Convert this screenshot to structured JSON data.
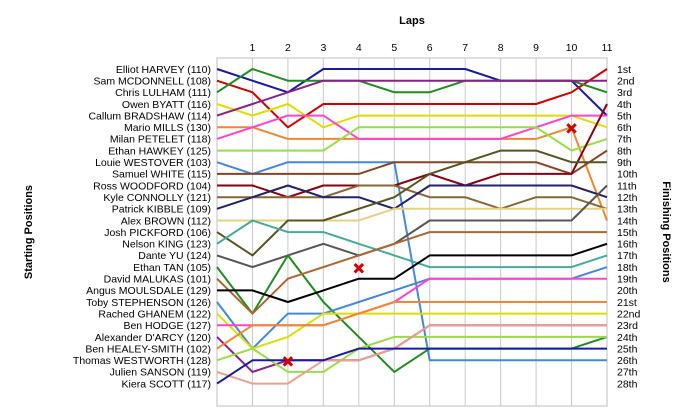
{
  "chart_data": {
    "type": "line",
    "title": "",
    "xlabel": "Laps",
    "ylabel_left": "Starting Positions",
    "ylabel_right": "Finishing Positions",
    "laps": [
      "1",
      "2",
      "3",
      "4",
      "5",
      "6",
      "7",
      "8",
      "9",
      "10",
      "11"
    ],
    "x_range": [
      0,
      11
    ],
    "y_range": [
      1,
      28
    ],
    "grid": true,
    "drivers": [
      "Elliot HARVEY (110)",
      "Sam MCDONNELL (108)",
      "Chris LULHAM (111)",
      "Owen BYATT (116)",
      "Callum BRADSHAW (114)",
      "Mario MILLS (130)",
      "Milan PETELET (118)",
      "Ethan HAWKEY (125)",
      "Louie WESTOVER (103)",
      "Samuel WHITE (115)",
      "Ross WOODFORD (104)",
      "Kyle CONNOLLY (121)",
      "Patrick KIBBLE (109)",
      "Alex BROWN (112)",
      "Josh PICKFORD (106)",
      "Nelson KING (123)",
      "Dante YU (124)",
      "Ethan TAN (105)",
      "David MALUKAS (101)",
      "Angus  MOULSDALE (129)",
      "Toby STEPHENSON (126)",
      "Rached GHANEM (122)",
      "Ben HODGE (127)",
      "Alexander D'ARCY (120)",
      "Ben HEALEY-SMITH (102)",
      "Thomas WESTWORTH (128)",
      "Julien SANSON (119)",
      "Kiera SCOTT (117)"
    ],
    "finishing_labels": [
      "1st",
      "2nd",
      "3rd",
      "4th",
      "5th",
      "6th",
      "7th",
      "8th",
      "9th",
      "10th",
      "11th",
      "12th",
      "13th",
      "14th",
      "15th",
      "16th",
      "17th",
      "18th",
      "19th",
      "20th",
      "21st",
      "22nd",
      "23rd",
      "24th",
      "25th",
      "26th",
      "27th",
      "28th"
    ],
    "series": [
      {
        "color": "#1a1aa0",
        "positions": [
          1,
          2,
          3,
          1,
          1,
          1,
          1,
          1,
          2,
          2,
          2,
          5
        ]
      },
      {
        "color": "#cc0000",
        "positions": [
          2,
          3,
          6,
          4,
          4,
          4,
          4,
          4,
          4,
          4,
          3,
          1
        ]
      },
      {
        "color": "#228b22",
        "positions": [
          3,
          1,
          2,
          2,
          2,
          3,
          3,
          2,
          2,
          2,
          2,
          3
        ]
      },
      {
        "color": "#dddd00",
        "positions": [
          4,
          5,
          4,
          6,
          5,
          5,
          5,
          5,
          5,
          5,
          5,
          6
        ]
      },
      {
        "color": "#882288",
        "positions": [
          5,
          4,
          3,
          2,
          2,
          2,
          2,
          2,
          2,
          2,
          2,
          2
        ]
      },
      {
        "color": "#ee8833",
        "positions": [
          6,
          6,
          7,
          7,
          7,
          7,
          7,
          7,
          7,
          7,
          6,
          14
        ]
      },
      {
        "color": "#ff44cc",
        "positions": [
          7,
          6,
          5,
          5,
          7,
          7,
          7,
          7,
          7,
          6,
          5,
          5
        ]
      },
      {
        "color": "#99dd44",
        "positions": [
          8,
          8,
          8,
          8,
          6,
          6,
          6,
          6,
          6,
          6,
          8,
          7
        ]
      },
      {
        "color": "#4488dd",
        "positions": [
          9,
          10,
          9,
          9,
          9,
          9,
          26,
          26,
          26,
          26,
          26,
          26
        ]
      },
      {
        "color": "#884422",
        "positions": [
          10,
          10,
          10,
          10,
          10,
          9,
          9,
          9,
          9,
          9,
          10,
          8
        ]
      },
      {
        "color": "#880011",
        "positions": [
          11,
          11,
          12,
          11,
          11,
          11,
          10,
          11,
          10,
          10,
          10,
          4
        ]
      },
      {
        "color": "#886633",
        "positions": [
          12,
          12,
          12,
          12,
          11,
          11,
          12,
          12,
          13,
          12,
          12,
          13
        ]
      },
      {
        "color": "#222266",
        "positions": [
          13,
          12,
          11,
          12,
          12,
          13,
          11,
          11,
          11,
          11,
          11,
          12
        ]
      },
      {
        "color": "#e8d080",
        "positions": [
          14,
          14,
          14,
          14,
          14,
          13,
          13,
          13,
          13,
          13,
          13,
          13
        ]
      },
      {
        "color": "#555522",
        "positions": [
          15,
          17,
          14,
          14,
          13,
          12,
          10,
          9,
          8,
          8,
          9,
          9
        ]
      },
      {
        "color": "#44aa99",
        "positions": [
          16,
          14,
          15,
          15,
          16,
          17,
          18,
          18,
          18,
          18,
          18,
          17
        ]
      },
      {
        "color": "#555555",
        "positions": [
          17,
          18,
          17,
          16,
          17,
          16,
          14,
          14,
          14,
          14,
          14,
          11
        ]
      },
      {
        "color": "#228b22",
        "positions": [
          18,
          22,
          17,
          21,
          24,
          27,
          25,
          25,
          25,
          25,
          25,
          24
        ]
      },
      {
        "color": "#aa6633",
        "positions": [
          19,
          22,
          19,
          18,
          17,
          16,
          15,
          15,
          15,
          15,
          15,
          15
        ]
      },
      {
        "color": "#000000",
        "positions": [
          20,
          20,
          21,
          20,
          19,
          19,
          17,
          17,
          17,
          17,
          17,
          16
        ]
      },
      {
        "color": "#4488dd",
        "positions": [
          21,
          25,
          22,
          22,
          21,
          20,
          19,
          19,
          19,
          19,
          19,
          18
        ]
      },
      {
        "color": "#dddd00",
        "positions": [
          22,
          25,
          24,
          22,
          22,
          22,
          22,
          22,
          22,
          22,
          22,
          22
        ]
      },
      {
        "color": "#ff44cc",
        "positions": [
          23,
          23,
          23,
          23,
          22,
          21,
          19,
          19,
          19,
          19,
          19,
          19
        ]
      },
      {
        "color": "#882288",
        "positions": [
          24,
          27,
          26,
          26,
          26,
          25,
          23,
          23,
          23,
          23,
          23,
          23
        ]
      },
      {
        "color": "#ee8833",
        "positions": [
          25,
          23,
          23,
          23,
          22,
          21,
          21,
          21,
          21,
          21,
          21,
          21
        ]
      },
      {
        "color": "#99dd44",
        "positions": [
          26,
          25,
          27,
          27,
          25,
          24,
          24,
          24,
          24,
          24,
          24,
          24
        ]
      },
      {
        "color": "#e8a090",
        "positions": [
          27,
          28,
          28,
          26,
          26,
          25,
          23,
          23,
          23,
          23,
          23,
          23
        ]
      },
      {
        "color": "#1a1aa0",
        "positions": [
          28,
          26,
          26,
          26,
          25,
          25,
          25,
          25,
          25,
          25,
          25,
          25
        ]
      }
    ],
    "markers": [
      {
        "type": "x",
        "lap": 2,
        "position": 26.1
      },
      {
        "type": "x",
        "lap": 4,
        "position": 18.1
      },
      {
        "type": "x",
        "lap": 10,
        "position": 6.1
      }
    ]
  }
}
